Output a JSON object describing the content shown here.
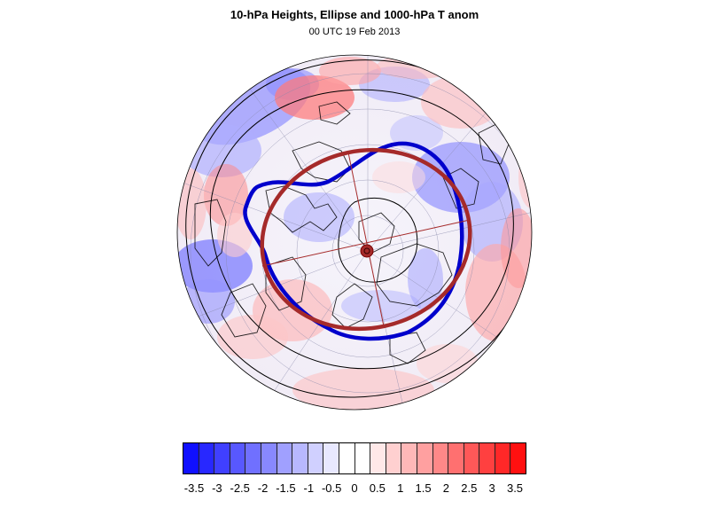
{
  "title": "10-hPa Heights, Ellipse and 1000-hPa T anom",
  "subtitle": "00 UTC 19 Feb 2013",
  "map": {
    "projection": "orthographic-polar",
    "overlay_colors": {
      "blue_contour": "#0000cc",
      "ellipse": "#a52a2a",
      "height_contours": "#000000",
      "graticule": "#8888aa"
    }
  },
  "colorbar": {
    "colors": [
      "#1010ff",
      "#2828ff",
      "#4040ff",
      "#5858ff",
      "#7070ff",
      "#8888ff",
      "#a0a0ff",
      "#b8b8ff",
      "#d0d0ff",
      "#e8e8ff",
      "#ffffff",
      "#ffffff",
      "#ffe8e8",
      "#ffd0d0",
      "#ffb8b8",
      "#ffa0a0",
      "#ff8888",
      "#ff7070",
      "#ff5858",
      "#ff4040",
      "#ff2828",
      "#ff1010"
    ],
    "labels": [
      "-3.5",
      "-3",
      "-2.5",
      "-2",
      "-1.5",
      "-1",
      "-0.5",
      "0",
      "0.5",
      "1",
      "1.5",
      "2",
      "2.5",
      "3",
      "3.5"
    ]
  }
}
